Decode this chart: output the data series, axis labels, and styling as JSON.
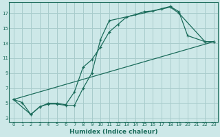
{
  "xlabel": "Humidex (Indice chaleur)",
  "ylabel": "",
  "bg_color": "#cde8e8",
  "grid_color": "#a8cccc",
  "line_color": "#1a6b5a",
  "xlim": [
    -0.5,
    23.5
  ],
  "ylim": [
    2.5,
    18.5
  ],
  "xticks": [
    0,
    1,
    2,
    3,
    4,
    5,
    6,
    7,
    8,
    9,
    10,
    11,
    12,
    13,
    14,
    15,
    16,
    17,
    18,
    19,
    20,
    21,
    22,
    23
  ],
  "yticks": [
    3,
    5,
    7,
    9,
    11,
    13,
    15,
    17
  ],
  "line1_x": [
    0,
    1,
    2,
    3,
    4,
    5,
    6,
    7,
    8,
    9,
    10,
    11,
    12,
    13,
    14,
    15,
    16,
    17,
    18,
    19,
    20,
    22,
    23
  ],
  "line1_y": [
    5.5,
    5.1,
    3.5,
    4.5,
    5.0,
    5.0,
    4.8,
    6.5,
    9.8,
    10.8,
    12.5,
    14.5,
    15.5,
    16.5,
    16.8,
    17.2,
    17.3,
    17.6,
    17.9,
    17.2,
    14.0,
    13.2,
    13.2
  ],
  "line2_x": [
    0,
    2,
    3,
    4,
    5,
    6,
    7,
    8,
    9,
    10,
    11,
    18,
    19,
    22,
    23
  ],
  "line2_y": [
    5.5,
    3.5,
    4.5,
    4.9,
    4.9,
    4.7,
    4.7,
    7.0,
    9.0,
    13.5,
    16.0,
    17.8,
    17.0,
    13.2,
    13.2
  ],
  "line3_x": [
    0,
    23
  ],
  "line3_y": [
    5.5,
    13.2
  ]
}
